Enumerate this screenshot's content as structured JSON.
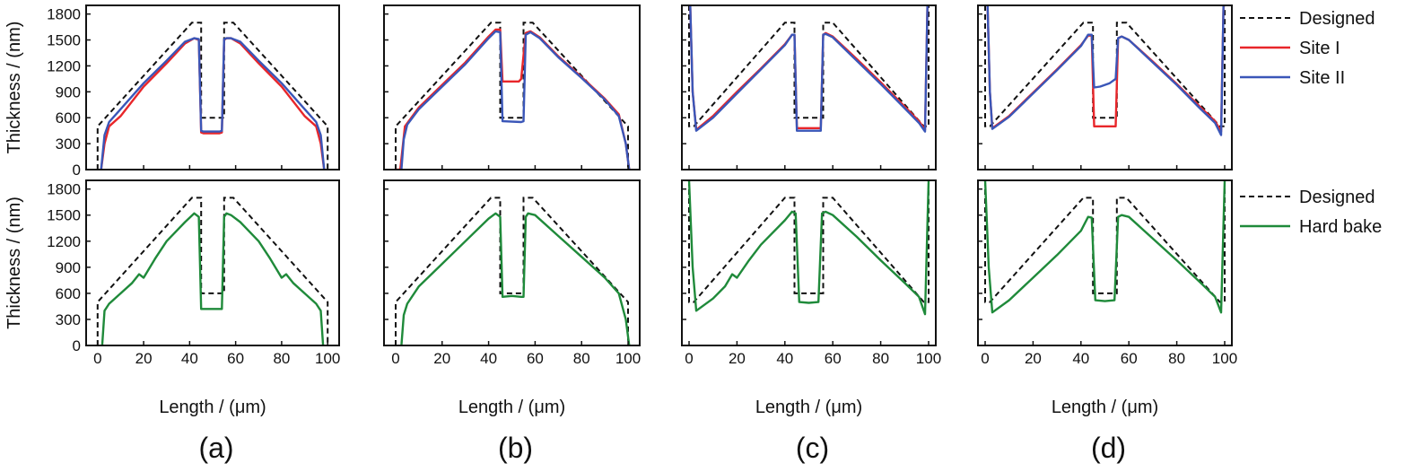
{
  "figure": {
    "colors": {
      "designed": "#111111",
      "site1": "#e8262a",
      "site2": "#3a56b8",
      "hardbake": "#1f8a3a"
    },
    "legend_top": [
      {
        "label": "Designed",
        "style": "dashed",
        "color": "#111111"
      },
      {
        "label": "Site I",
        "style": "solid",
        "color": "#e8262a"
      },
      {
        "label": "Site II",
        "style": "solid",
        "color": "#3a56b8"
      }
    ],
    "legend_bottom": [
      {
        "label": "Designed",
        "style": "dashed",
        "color": "#111111"
      },
      {
        "label": "Hard bake",
        "style": "solid",
        "color": "#1f8a3a"
      }
    ]
  },
  "chart_data": [
    {
      "panel": "(a)",
      "row": "top",
      "type": "line",
      "xlabel": "Length / (μm)",
      "ylabel": "Thickness / (nm)",
      "xlim": [
        -5,
        105
      ],
      "ylim": [
        0,
        1900
      ],
      "xticks": [
        0,
        20,
        40,
        60,
        80,
        100
      ],
      "yticks": [
        0,
        300,
        600,
        900,
        1200,
        1500,
        1800
      ],
      "designed": {
        "x": [
          0,
          0,
          41,
          41,
          45,
          45,
          55,
          55,
          59,
          59,
          100,
          100
        ],
        "y": [
          0,
          500,
          1700,
          1700,
          1700,
          600,
          600,
          1700,
          1700,
          1700,
          500,
          0
        ]
      },
      "series": [
        {
          "name": "Site I",
          "x": [
            1.5,
            3,
            5,
            10,
            20,
            30,
            38,
            42,
            44,
            45,
            46,
            53,
            54,
            55,
            56,
            58,
            62,
            70,
            80,
            90,
            95,
            97,
            98.5
          ],
          "y": [
            0,
            300,
            500,
            620,
            960,
            1230,
            1460,
            1520,
            1500,
            430,
            420,
            420,
            430,
            1500,
            1520,
            1520,
            1460,
            1230,
            960,
            620,
            500,
            300,
            0
          ]
        },
        {
          "name": "Site II",
          "x": [
            1.5,
            3,
            5,
            10,
            20,
            30,
            38,
            42,
            44,
            45,
            46,
            53,
            54,
            55,
            56,
            58,
            62,
            70,
            80,
            90,
            95,
            97,
            98.5
          ],
          "y": [
            0,
            400,
            550,
            700,
            1000,
            1260,
            1480,
            1520,
            1510,
            450,
            440,
            440,
            450,
            1510,
            1520,
            1520,
            1480,
            1260,
            1000,
            700,
            550,
            400,
            0
          ]
        }
      ]
    },
    {
      "panel": "(b)",
      "row": "top",
      "type": "line",
      "xlabel": "Length / (μm)",
      "ylabel": "",
      "xlim": [
        -5,
        105
      ],
      "ylim": [
        0,
        1900
      ],
      "xticks": [
        0,
        20,
        40,
        60,
        80,
        100
      ],
      "yticks": [
        0,
        300,
        600,
        900,
        1200,
        1500,
        1800
      ],
      "designed": {
        "x": [
          0,
          0,
          41,
          41,
          45,
          45,
          55,
          55,
          59,
          59,
          100,
          100
        ],
        "y": [
          0,
          500,
          1700,
          1700,
          1700,
          600,
          600,
          1700,
          1700,
          1700,
          500,
          0
        ]
      },
      "series": [
        {
          "name": "Site I",
          "x": [
            0,
            2,
            4,
            10,
            20,
            30,
            40,
            43,
            45,
            46,
            53,
            54,
            56,
            58,
            62,
            70,
            80,
            90,
            96,
            99,
            100.5
          ],
          "y": [
            0,
            0,
            500,
            720,
            980,
            1240,
            1540,
            1620,
            1620,
            1020,
            1020,
            1050,
            1580,
            1600,
            1530,
            1310,
            1070,
            820,
            640,
            300,
            0
          ]
        },
        {
          "name": "Site II",
          "x": [
            2.5,
            3.5,
            5,
            10,
            20,
            30,
            40,
            43,
            45,
            46,
            54,
            55,
            56,
            58,
            62,
            70,
            80,
            90,
            96,
            99,
            100.5
          ],
          "y": [
            0,
            350,
            520,
            700,
            960,
            1220,
            1520,
            1600,
            1590,
            560,
            550,
            560,
            1560,
            1590,
            1520,
            1300,
            1060,
            810,
            620,
            300,
            0
          ]
        }
      ]
    },
    {
      "panel": "(c)",
      "row": "top",
      "type": "line",
      "xlabel": "Length / (μm)",
      "ylabel": "",
      "xlim": [
        -3,
        103
      ],
      "ylim": [
        0,
        1900
      ],
      "xticks": [
        0,
        20,
        40,
        60,
        80,
        100
      ],
      "yticks": [
        0,
        300,
        600,
        900,
        1200,
        1500,
        1800
      ],
      "designed": {
        "x": [
          0,
          0,
          2,
          40,
          44,
          44,
          56,
          56,
          60,
          98,
          100,
          100
        ],
        "y": [
          1900,
          500,
          500,
          1700,
          1700,
          600,
          600,
          1700,
          1700,
          500,
          500,
          1900
        ]
      },
      "series": [
        {
          "name": "Site I",
          "x": [
            0.5,
            1.5,
            3,
            10,
            20,
            30,
            40,
            43,
            44,
            45,
            55,
            56,
            57,
            60,
            70,
            80,
            90,
            96,
            98.5,
            99.5
          ],
          "y": [
            1900,
            900,
            460,
            620,
            900,
            1170,
            1450,
            1560,
            1560,
            480,
            480,
            1560,
            1580,
            1540,
            1280,
            1010,
            730,
            560,
            460,
            1900
          ]
        },
        {
          "name": "Site II",
          "x": [
            0.5,
            1.5,
            3,
            10,
            20,
            30,
            40,
            43,
            44,
            45,
            55,
            56,
            57,
            60,
            70,
            80,
            90,
            96,
            98.5,
            99.5
          ],
          "y": [
            1900,
            900,
            450,
            600,
            880,
            1160,
            1440,
            1560,
            1560,
            450,
            450,
            1560,
            1570,
            1530,
            1260,
            990,
            710,
            540,
            440,
            1900
          ]
        }
      ]
    },
    {
      "panel": "(d)",
      "row": "top",
      "type": "line",
      "xlabel": "Length / (μm)",
      "ylabel": "",
      "xlim": [
        -3,
        103
      ],
      "ylim": [
        0,
        1900
      ],
      "xticks": [
        0,
        20,
        40,
        60,
        80,
        100
      ],
      "yticks": [
        0,
        300,
        600,
        900,
        1200,
        1500,
        1800
      ],
      "designed": {
        "x": [
          0,
          0,
          2,
          41,
          45,
          45,
          55,
          55,
          59,
          98,
          100,
          100
        ],
        "y": [
          1900,
          500,
          500,
          1700,
          1700,
          600,
          600,
          1700,
          1700,
          500,
          500,
          1900
        ]
      },
      "series": [
        {
          "name": "Site I",
          "x": [
            1,
            2,
            3,
            10,
            20,
            30,
            40,
            43,
            44.5,
            45.5,
            54.5,
            55.5,
            57,
            60,
            70,
            80,
            90,
            96,
            98.5,
            99.5
          ],
          "y": [
            1900,
            900,
            480,
            620,
            890,
            1160,
            1440,
            1550,
            1550,
            500,
            500,
            1520,
            1540,
            1500,
            1250,
            990,
            720,
            560,
            440,
            1900
          ]
        },
        {
          "name": "Site II",
          "x": [
            1,
            2,
            3,
            10,
            20,
            30,
            40,
            43,
            44.5,
            45.5,
            48,
            52,
            54.5,
            55.5,
            57,
            60,
            70,
            80,
            90,
            96,
            98.5,
            99.5
          ],
          "y": [
            1900,
            900,
            470,
            610,
            880,
            1150,
            1430,
            1560,
            1560,
            950,
            960,
            1000,
            1050,
            1520,
            1540,
            1500,
            1240,
            980,
            700,
            540,
            400,
            1900
          ]
        }
      ]
    },
    {
      "panel": "(a)",
      "row": "bottom",
      "type": "line",
      "xlabel": "Length / (μm)",
      "ylabel": "Thickness / (nm)",
      "xlim": [
        -5,
        105
      ],
      "ylim": [
        0,
        1900
      ],
      "xticks": [
        0,
        20,
        40,
        60,
        80,
        100
      ],
      "yticks": [
        0,
        300,
        600,
        900,
        1200,
        1500,
        1800
      ],
      "designed": {
        "x": [
          0,
          0,
          41,
          41,
          45,
          45,
          55,
          55,
          59,
          59,
          100,
          100
        ],
        "y": [
          0,
          500,
          1700,
          1700,
          1700,
          600,
          600,
          1700,
          1700,
          1700,
          500,
          0
        ]
      },
      "series": [
        {
          "name": "Hard bake",
          "x": [
            2,
            3,
            5,
            10,
            15,
            18,
            20,
            25,
            30,
            38,
            42,
            44,
            45,
            46,
            53,
            54,
            55,
            56,
            58,
            62,
            70,
            75,
            80,
            82,
            85,
            90,
            95,
            97,
            98
          ],
          "y": [
            0,
            400,
            480,
            600,
            720,
            820,
            780,
            1000,
            1200,
            1420,
            1520,
            1480,
            420,
            420,
            420,
            420,
            1480,
            1520,
            1500,
            1420,
            1200,
            1000,
            780,
            820,
            720,
            600,
            480,
            400,
            0
          ]
        }
      ]
    },
    {
      "panel": "(b)",
      "row": "bottom",
      "type": "line",
      "xlabel": "Length / (μm)",
      "ylabel": "",
      "xlim": [
        -5,
        105
      ],
      "ylim": [
        0,
        1900
      ],
      "xticks": [
        0,
        20,
        40,
        60,
        80,
        100
      ],
      "yticks": [
        0,
        300,
        600,
        900,
        1200,
        1500,
        1800
      ],
      "designed": {
        "x": [
          0,
          0,
          41,
          41,
          45,
          45,
          55,
          55,
          59,
          59,
          100,
          100
        ],
        "y": [
          0,
          500,
          1700,
          1700,
          1700,
          600,
          600,
          1700,
          1700,
          1700,
          500,
          0
        ]
      },
      "series": [
        {
          "name": "Hard bake",
          "x": [
            2.5,
            3.5,
            5,
            10,
            20,
            30,
            40,
            43,
            45,
            46,
            50,
            54,
            55,
            56,
            57,
            60,
            70,
            80,
            90,
            96,
            99,
            100.5
          ],
          "y": [
            0,
            350,
            480,
            680,
            940,
            1200,
            1460,
            1520,
            1480,
            560,
            570,
            560,
            560,
            1480,
            1520,
            1500,
            1260,
            1020,
            780,
            600,
            300,
            0
          ]
        }
      ]
    },
    {
      "panel": "(c)",
      "row": "bottom",
      "type": "line",
      "xlabel": "Length / (μm)",
      "ylabel": "",
      "xlim": [
        -3,
        103
      ],
      "ylim": [
        0,
        1900
      ],
      "xticks": [
        0,
        20,
        40,
        60,
        80,
        100
      ],
      "yticks": [
        0,
        300,
        600,
        900,
        1200,
        1500,
        1800
      ],
      "designed": {
        "x": [
          0,
          0,
          2,
          40,
          44,
          44,
          56,
          56,
          60,
          98,
          100,
          100
        ],
        "y": [
          1900,
          500,
          500,
          1700,
          1700,
          600,
          600,
          1700,
          1700,
          500,
          500,
          1900
        ]
      },
      "series": [
        {
          "name": "Hard bake",
          "x": [
            0,
            1.5,
            3,
            10,
            15,
            18,
            20,
            25,
            30,
            40,
            43,
            44.5,
            46,
            50,
            54,
            55.5,
            57,
            60,
            70,
            80,
            90,
            96,
            98.5,
            100
          ],
          "y": [
            1900,
            900,
            400,
            540,
            680,
            820,
            780,
            980,
            1160,
            1440,
            1540,
            1520,
            500,
            490,
            500,
            1520,
            1540,
            1500,
            1250,
            980,
            720,
            560,
            360,
            1900
          ]
        }
      ]
    },
    {
      "panel": "(d)",
      "row": "bottom",
      "type": "line",
      "xlabel": "Length / (μm)",
      "ylabel": "",
      "xlim": [
        -3,
        103
      ],
      "ylim": [
        0,
        1900
      ],
      "xticks": [
        0,
        20,
        40,
        60,
        80,
        100
      ],
      "yticks": [
        0,
        300,
        600,
        900,
        1200,
        1500,
        1800
      ],
      "designed": {
        "x": [
          0,
          0,
          2,
          41,
          45,
          45,
          55,
          55,
          59,
          98,
          100,
          100
        ],
        "y": [
          1900,
          500,
          500,
          1700,
          1700,
          600,
          600,
          1700,
          1700,
          500,
          500,
          1900
        ]
      },
      "series": [
        {
          "name": "Hard bake",
          "x": [
            0,
            1.5,
            3,
            10,
            20,
            30,
            40,
            43,
            44.5,
            46,
            50,
            54,
            55.5,
            57,
            60,
            70,
            80,
            90,
            96,
            98.5,
            100
          ],
          "y": [
            1900,
            900,
            380,
            520,
            780,
            1040,
            1320,
            1480,
            1470,
            520,
            510,
            520,
            1480,
            1500,
            1480,
            1230,
            980,
            720,
            560,
            380,
            1900
          ]
        }
      ]
    }
  ],
  "panel_labels": [
    "(a)",
    "(b)",
    "(c)",
    "(d)"
  ]
}
